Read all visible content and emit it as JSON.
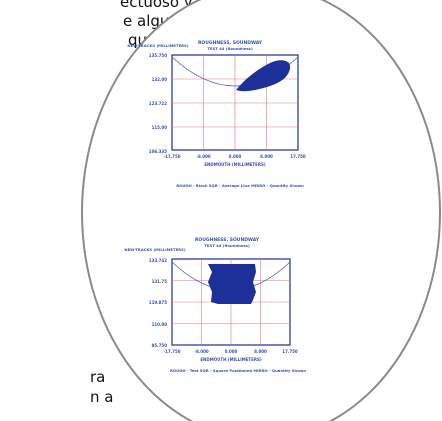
{
  "page_text": {
    "line1": "ectuoso y",
    "line2": "e alguna",
    "line3": "que",
    "line4": "ra",
    "line5": "n a"
  },
  "colors": {
    "plot_blue": "#1d2f98",
    "grid_blue": "#5a6fcf",
    "grid_red": "#e27a7a",
    "circle_border": "#8a8a8a"
  },
  "plots": [
    {
      "title": "ROUGHNESS, SOUNDWAY",
      "subtitle": "TEST 44 (Roundness)",
      "ylabel": "NEW-TRACKS (MILLIMETERS)",
      "y_ticks": [
        "135.750",
        "132.00",
        "123.722",
        "115.00",
        "106.335"
      ],
      "x_ticks": [
        "-17.750",
        "-8.000",
        "0.000",
        "8.000",
        "17.750"
      ],
      "xlabel": "ENDMOUTH (MILLIMETERS)",
      "legend": "ROUGH - Black   SQR - Average Line   MIRRO - Quantity Shown"
    },
    {
      "title": "ROUGHNESS, SOUNDWAY",
      "subtitle": "TEST 44 (Roundness)",
      "ylabel": "NEW-TRACKS (MILLIMETERS)",
      "y_ticks": [
        "133.742",
        "131.75",
        "119.875",
        "110.00",
        "95.750"
      ],
      "x_ticks": [
        "-17.750",
        "-8.000",
        "0.000",
        "8.000",
        "17.750"
      ],
      "xlabel": "ENDMOUTH (MILLIMETERS)",
      "legend": "ROUGH - Test   SQR - Square Positioned   MIRRO - Quantity Shown"
    }
  ]
}
